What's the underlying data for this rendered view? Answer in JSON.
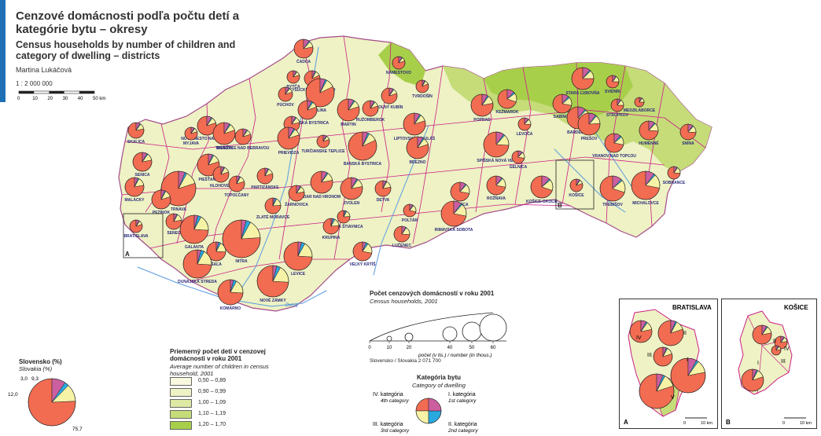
{
  "title": {
    "sk": "Cenzové domácnosti podľa počtu detí a kategórie bytu – okresy",
    "en": "Census households by number of children and category of dwelling – districts",
    "author": "Martina Lukáčová",
    "scale": "1 : 2 000 000",
    "scale_ticks": [
      "0",
      "10",
      "20",
      "30",
      "40",
      "50 km"
    ]
  },
  "colors": {
    "cat1": "#f26c52",
    "cat2": "#f7f3a6",
    "cat3": "#29a9df",
    "cat4": "#cc5fa0",
    "avg": [
      "#f9f9df",
      "#eef2c4",
      "#dde9a4",
      "#c5dc79",
      "#a8cf4a"
    ],
    "border": "#cc1f86",
    "river": "#5a9be0"
  },
  "districts": [
    {
      "name": "ČADCA"
    },
    {
      "name": "NÁMESTOVO"
    },
    {
      "name": "KYSUCKÉ NOVÉ MESTO"
    },
    {
      "name": "BYTČA"
    },
    {
      "name": "TVRDOŠÍN"
    },
    {
      "name": "DOLNÝ KUBÍN"
    },
    {
      "name": "ŽILINA"
    },
    {
      "name": "PÚCHOV"
    },
    {
      "name": "POVAŽSKÁ BYSTRICA"
    },
    {
      "name": "ILAVA"
    },
    {
      "name": "MARTIN"
    },
    {
      "name": "RUŽOMBEROK"
    },
    {
      "name": "LIPTOVSKÝ MIKULÁŠ"
    },
    {
      "name": "POPRAD"
    },
    {
      "name": "KEŽMAROK"
    },
    {
      "name": "STARÁ ĽUBOVŇA"
    },
    {
      "name": "SABINOV"
    },
    {
      "name": "BARDEJOV"
    },
    {
      "name": "SVIDNÍK"
    },
    {
      "name": "STROPKOV"
    },
    {
      "name": "MEDZILABORCE"
    },
    {
      "name": "LEVOČA"
    },
    {
      "name": "PREŠOV"
    },
    {
      "name": "HUMENNÉ"
    },
    {
      "name": "SNINA"
    },
    {
      "name": "VRANOV NAD TOPĽOU"
    },
    {
      "name": "SPIŠSKÁ NOVÁ VES"
    },
    {
      "name": "GELNICA"
    },
    {
      "name": "SOBRANCE"
    },
    {
      "name": "KOŠICE-OKOLIE"
    },
    {
      "name": "ROŽŇAVA"
    },
    {
      "name": "TREBIŠOV"
    },
    {
      "name": "MICHALOVCE"
    },
    {
      "name": "SKALICA"
    },
    {
      "name": "NOVÉ MESTO NAD VÁHOM"
    },
    {
      "name": "MYJAVA"
    },
    {
      "name": "TRENČÍN"
    },
    {
      "name": "BÁNOVCE NAD BEBRAVOU"
    },
    {
      "name": "PRIEVIDZA"
    },
    {
      "name": "TURČIANSKE TEPLICE"
    },
    {
      "name": "BANSKÁ BYSTRICA"
    },
    {
      "name": "BREZNO"
    },
    {
      "name": "SENICA"
    },
    {
      "name": "PIEŠŤANY"
    },
    {
      "name": "TRNAVA"
    },
    {
      "name": "HLOHOVEC"
    },
    {
      "name": "TOPOĽČANY"
    },
    {
      "name": "PARTIZÁNSKE"
    },
    {
      "name": "ŽARNOVICA"
    },
    {
      "name": "ŽIAR NAD HRONOM"
    },
    {
      "name": "ZVOLEN"
    },
    {
      "name": "DETVA"
    },
    {
      "name": "REVÚCA"
    },
    {
      "name": "MALACKY"
    },
    {
      "name": "PEZINOK"
    },
    {
      "name": "SENEC"
    },
    {
      "name": "GALANTA"
    },
    {
      "name": "ŠAĽA"
    },
    {
      "name": "ZLATÉ MORAVCE"
    },
    {
      "name": "NITRA"
    },
    {
      "name": "BANSKÁ ŠTIAVNICA"
    },
    {
      "name": "KRUPINA"
    },
    {
      "name": "POLTÁR"
    },
    {
      "name": "LUČENEC"
    },
    {
      "name": "RIMAVSKÁ SOBOTA"
    },
    {
      "name": "DUNAJSKÁ STREDA"
    },
    {
      "name": "LEVICE"
    },
    {
      "name": "VEĽKÝ KRTÍŠ"
    },
    {
      "name": "NOVÉ ZÁMKY"
    },
    {
      "name": "KOMÁRNO"
    },
    {
      "name": "BRATISLAVA"
    },
    {
      "name": "KOŠICE"
    }
  ],
  "map_markers": {
    "a": "A",
    "b": "B"
  },
  "rivers": [
    "Dunaj",
    "Váh",
    "Hron"
  ],
  "inset_bratislava": {
    "title": "BRATISLAVA",
    "letter": "A",
    "parts": [
      "IV",
      "III",
      "II",
      "I",
      "V"
    ],
    "scale_ticks": [
      "0",
      "10 km"
    ]
  },
  "inset_kosice": {
    "title": "KOŠICE",
    "letter": "B",
    "parts": [
      "II",
      "IV",
      "I",
      "III"
    ],
    "scale_ticks": [
      "0",
      "10 km"
    ]
  },
  "legend_size": {
    "title": "Počet cenzových domácností v roku 2001",
    "subtitle": "Census households, 2001",
    "ticks": [
      "0",
      "10",
      "20",
      "40",
      "50",
      "60"
    ],
    "axis_label": "počet (v tis.) / number (in thous.)",
    "slovensko_label": "Slovensko / Slovakia",
    "slovensko_value": "2 071 700"
  },
  "legend_avg": {
    "title": "Priemerný počet detí v cenzovej domácnosti v roku 2001",
    "subtitle": "Average number of children in census household, 2001",
    "classes": [
      "0,50 – 0,89",
      "0,90 – 0,99",
      "1,00 – 1,09",
      "1,10 – 1,19",
      "1,20 – 1,70"
    ]
  },
  "legend_category": {
    "title": "Kategória bytu",
    "subtitle": "Category of dwelling",
    "cat4_sk": "IV. kategória",
    "cat4_en": "4th category",
    "cat1_sk": "I. kategória",
    "cat1_en": "1st category",
    "cat3_sk": "III. kategória",
    "cat3_en": "3rd category",
    "cat2_sk": "II. kategória",
    "cat2_en": "2nd category"
  },
  "slovakia_pie": {
    "title": "Slovensko (%)",
    "subtitle": "Slovakia (%)",
    "values": [
      75.7,
      12.0,
      3.0,
      9.3
    ],
    "labels": [
      "75,7",
      "12,0",
      "3,0",
      "9,3"
    ]
  }
}
